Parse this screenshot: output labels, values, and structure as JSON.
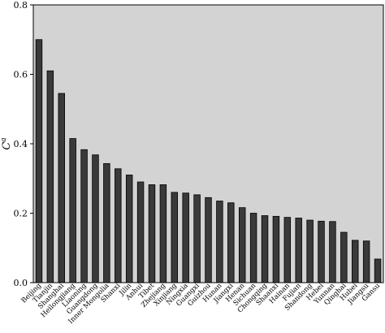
{
  "chart_data": {
    "type": "bar",
    "ylabel": "C",
    "ylabel_superscript": "a",
    "ylim": [
      0,
      0.8
    ],
    "yticks": [
      "0.0",
      "0.2",
      "0.4",
      "0.6",
      "0.8"
    ],
    "grid": false,
    "background": "#d3d3d3",
    "bar_color": "#3a3a3a",
    "categories": [
      "Beijing",
      "Tianjin",
      "Shanghai",
      "Heilongjiang",
      "Liaoning",
      "Guangdong",
      "Inner Mongolia",
      "Shanxi",
      "Jilin",
      "Anhui",
      "Tibet",
      "Zhejiang",
      "Xinjiang",
      "Ningxia",
      "Guangxi",
      "Guizhou",
      "Hunan",
      "Jiangxi",
      "Henan",
      "Sichuan",
      "Chongqing",
      "Shaanxi",
      "Hainan",
      "Fujian",
      "Shandong",
      "Hebei",
      "Yunnan",
      "Qinghai",
      "Hubei",
      "Jiangsu",
      "Gansu"
    ],
    "values": [
      0.7,
      0.61,
      0.545,
      0.415,
      0.383,
      0.368,
      0.343,
      0.328,
      0.31,
      0.29,
      0.282,
      0.282,
      0.26,
      0.258,
      0.253,
      0.245,
      0.235,
      0.23,
      0.216,
      0.2,
      0.193,
      0.191,
      0.188,
      0.186,
      0.18,
      0.177,
      0.176,
      0.145,
      0.122,
      0.12,
      0.068
    ]
  }
}
